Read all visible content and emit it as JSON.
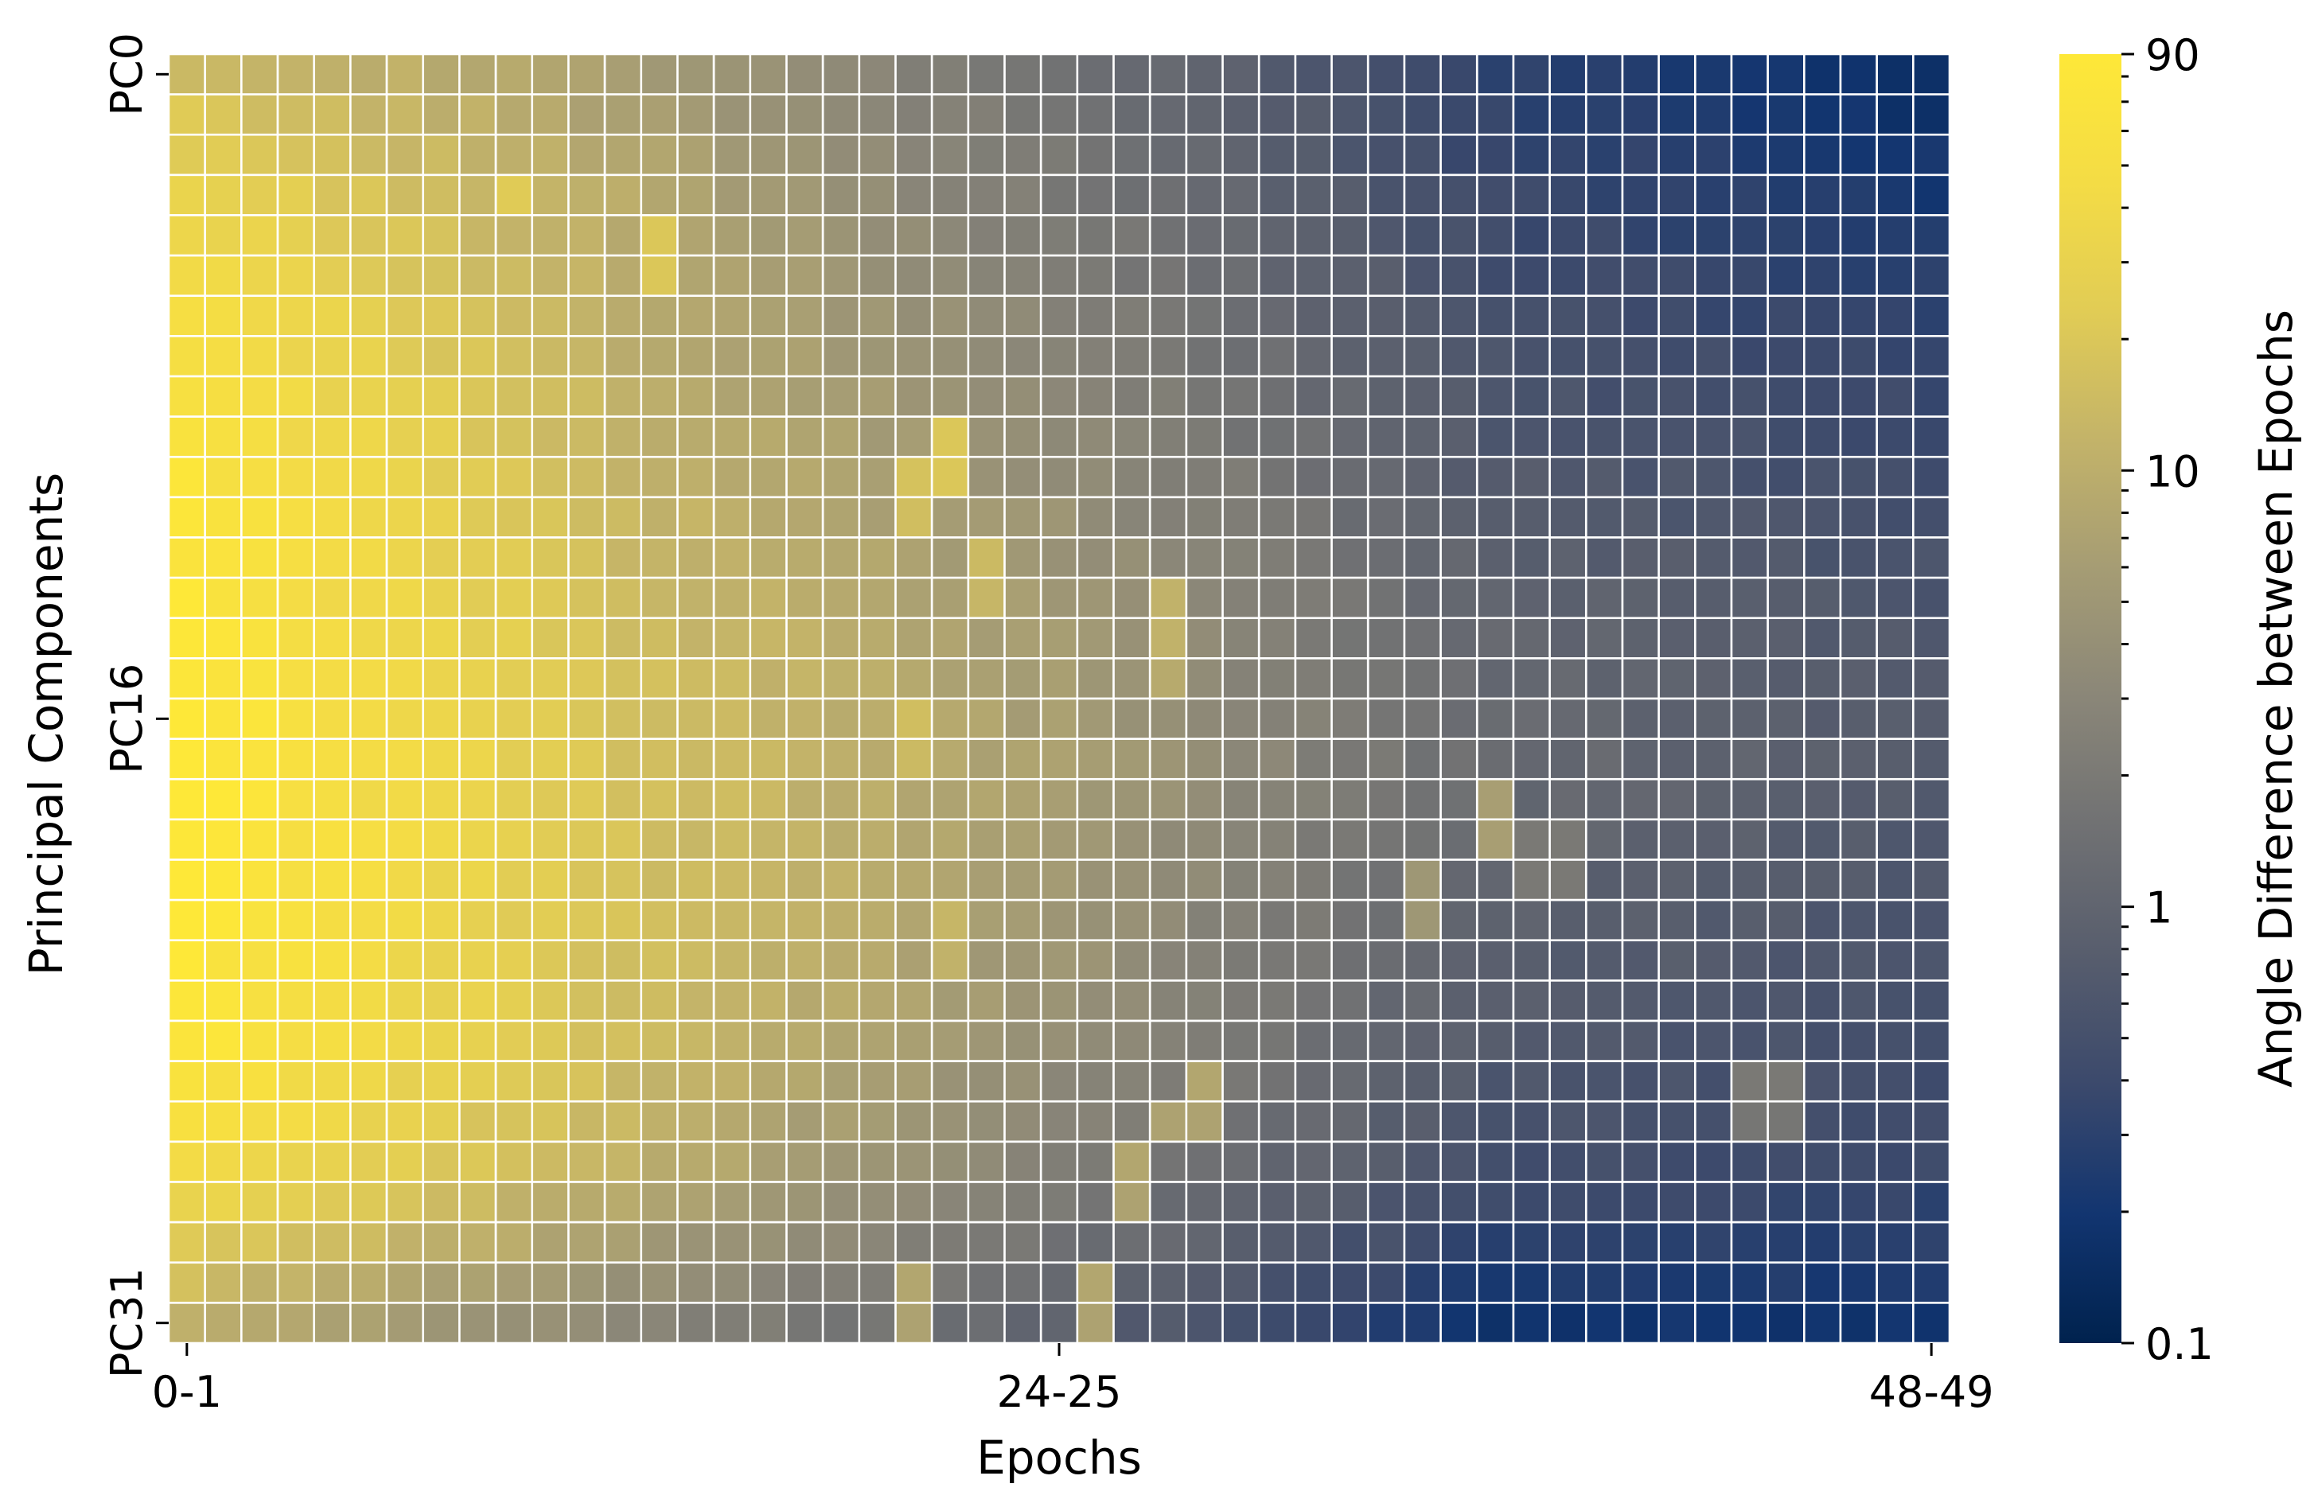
{
  "chart_data": {
    "type": "heatmap",
    "title": "",
    "xlabel": "Epochs",
    "ylabel": "Principal Components",
    "x_tick_labels": [
      "0-1",
      "24-25",
      "48-49"
    ],
    "x_tick_indices": [
      0,
      24,
      48
    ],
    "y_tick_labels": [
      "PC0",
      "PC16",
      "PC31"
    ],
    "y_tick_indices": [
      0,
      16,
      31
    ],
    "colorbar": {
      "label": "Angle Difference between Epochs",
      "scale": "log",
      "range": [
        0.1,
        90
      ],
      "ticks": [
        "90",
        "10",
        "1",
        "0.1"
      ],
      "tick_values": [
        90,
        10,
        1,
        0.1
      ],
      "colormap": "cividis"
    },
    "n_rows": 32,
    "n_cols": 49,
    "grid_color": "#ffffff",
    "values_log10_endpoints": {
      "rows": [
        0,
        3,
        6,
        10,
        14,
        17,
        20,
        24,
        27,
        29,
        31
      ],
      "cols": [
        0,
        12,
        24,
        36,
        48
      ],
      "log10_values": [
        [
          1.2,
          0.8,
          0.2,
          -0.5,
          -0.8
        ],
        [
          1.5,
          0.95,
          0.3,
          -0.4,
          -0.65
        ],
        [
          1.7,
          1.0,
          0.45,
          -0.3,
          -0.5
        ],
        [
          1.85,
          1.1,
          0.6,
          -0.15,
          -0.35
        ],
        [
          1.9,
          1.2,
          0.75,
          0.05,
          -0.2
        ],
        [
          1.95,
          1.25,
          0.8,
          0.1,
          -0.15
        ],
        [
          1.95,
          1.25,
          0.75,
          0.0,
          -0.2
        ],
        [
          1.9,
          1.2,
          0.6,
          -0.15,
          -0.3
        ],
        [
          1.7,
          1.05,
          0.4,
          -0.3,
          -0.4
        ],
        [
          1.35,
          0.8,
          0.2,
          -0.5,
          -0.55
        ],
        [
          1.0,
          0.5,
          0.0,
          -0.75,
          -0.7
        ]
      ]
    },
    "bright_cells": [
      [
        3,
        9,
        1.35
      ],
      [
        4,
        13,
        1.3
      ],
      [
        5,
        13,
        1.3
      ],
      [
        9,
        21,
        1.3
      ],
      [
        10,
        21,
        1.3
      ],
      [
        10,
        20,
        1.25
      ],
      [
        11,
        20,
        1.2
      ],
      [
        12,
        22,
        1.15
      ],
      [
        13,
        22,
        1.1
      ],
      [
        13,
        27,
        1.05
      ],
      [
        14,
        27,
        1.05
      ],
      [
        15,
        27,
        0.95
      ],
      [
        18,
        36,
        0.8
      ],
      [
        19,
        36,
        0.8
      ],
      [
        20,
        34,
        0.7
      ],
      [
        21,
        34,
        0.7
      ],
      [
        16,
        20,
        1.2
      ],
      [
        17,
        20,
        1.15
      ],
      [
        21,
        21,
        1.1
      ],
      [
        22,
        21,
        1.05
      ],
      [
        25,
        28,
        0.9
      ],
      [
        26,
        28,
        0.85
      ],
      [
        26,
        27,
        0.85
      ],
      [
        27,
        26,
        0.9
      ],
      [
        28,
        26,
        0.85
      ],
      [
        30,
        20,
        0.9
      ],
      [
        31,
        20,
        0.85
      ],
      [
        30,
        25,
        0.9
      ],
      [
        31,
        25,
        0.85
      ],
      [
        25,
        43,
        0.3
      ],
      [
        25,
        44,
        0.3
      ],
      [
        26,
        43,
        0.25
      ],
      [
        26,
        44,
        0.25
      ],
      [
        19,
        37,
        0.3
      ],
      [
        20,
        37,
        0.3
      ],
      [
        19,
        38,
        0.3
      ],
      [
        20,
        38,
        0.3
      ]
    ]
  }
}
